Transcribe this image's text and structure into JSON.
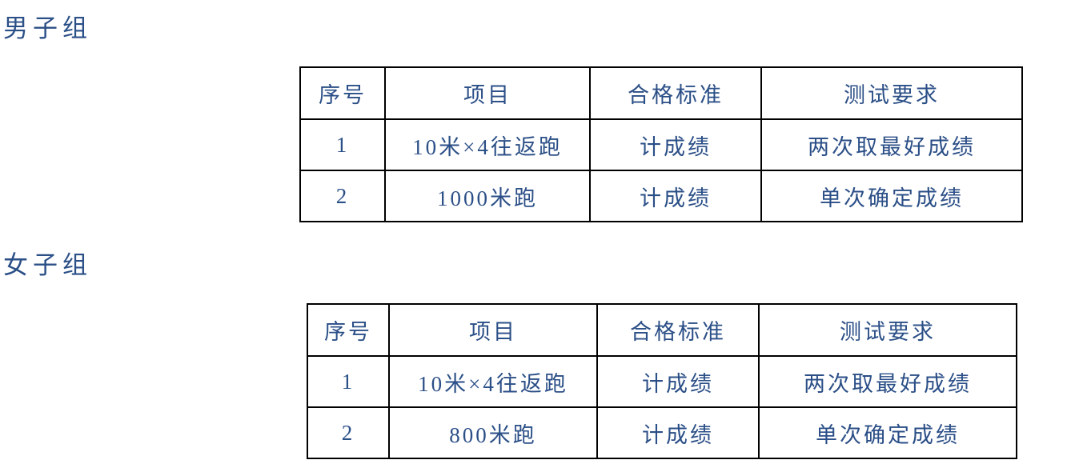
{
  "page": {
    "text_color": "#2b4f87",
    "border_color": "#000000",
    "background": "#ffffff"
  },
  "sections": [
    {
      "heading": "男子组",
      "table": {
        "headers": [
          "序号",
          "项目",
          "合格标准",
          "测试要求"
        ],
        "rows": [
          [
            "1",
            "10米×4往返跑",
            "计成绩",
            "两次取最好成绩"
          ],
          [
            "2",
            "1000米跑",
            "计成绩",
            "单次确定成绩"
          ]
        ]
      }
    },
    {
      "heading": "女子组",
      "table": {
        "headers": [
          "序号",
          "项目",
          "合格标准",
          "测试要求"
        ],
        "rows": [
          [
            "1",
            "10米×4往返跑",
            "计成绩",
            "两次取最好成绩"
          ],
          [
            "2",
            "800米跑",
            "计成绩",
            "单次确定成绩"
          ]
        ]
      }
    }
  ]
}
